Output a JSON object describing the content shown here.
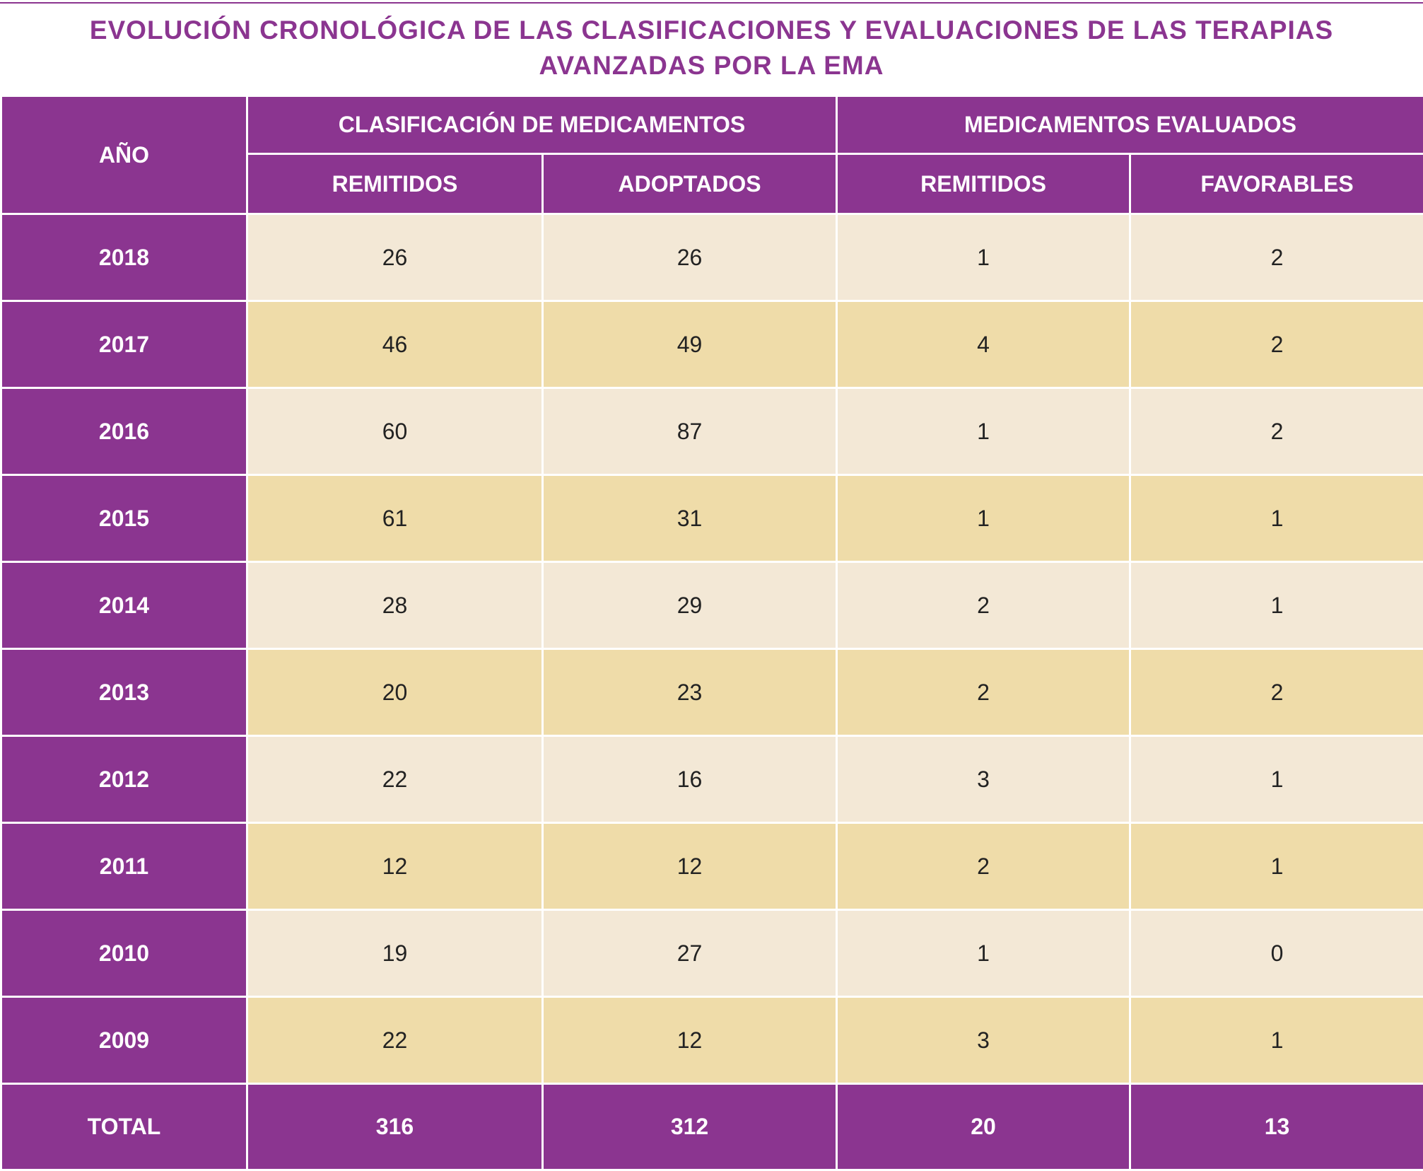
{
  "header": {
    "title": "EVOLUCIÓN CRONOLÓGICA DE LAS CLASIFICACIONES Y EVALUACIONES DE LAS TERAPIAS AVANZADAS POR LA EMA"
  },
  "table": {
    "year_header": "AÑO",
    "groups": [
      "CLASIFICACIÓN DE MEDICAMENTOS",
      "MEDICAMENTOS EVALUADOS"
    ],
    "subheaders": [
      "REMITIDOS",
      "ADOPTADOS",
      "REMITIDOS",
      "FAVORABLES"
    ],
    "rows": [
      {
        "year": "2018",
        "values": [
          26,
          26,
          1,
          2
        ]
      },
      {
        "year": "2017",
        "values": [
          46,
          49,
          4,
          2
        ]
      },
      {
        "year": "2016",
        "values": [
          60,
          87,
          1,
          2
        ]
      },
      {
        "year": "2015",
        "values": [
          61,
          31,
          1,
          1
        ]
      },
      {
        "year": "2014",
        "values": [
          28,
          29,
          2,
          1
        ]
      },
      {
        "year": "2013",
        "values": [
          20,
          23,
          2,
          2
        ]
      },
      {
        "year": "2012",
        "values": [
          22,
          16,
          3,
          1
        ]
      },
      {
        "year": "2011",
        "values": [
          12,
          12,
          2,
          1
        ]
      },
      {
        "year": "2010",
        "values": [
          19,
          27,
          1,
          0
        ]
      },
      {
        "year": "2009",
        "values": [
          22,
          12,
          3,
          1
        ]
      }
    ],
    "total": {
      "label": "TOTAL",
      "values": [
        316,
        312,
        20,
        13
      ]
    }
  }
}
